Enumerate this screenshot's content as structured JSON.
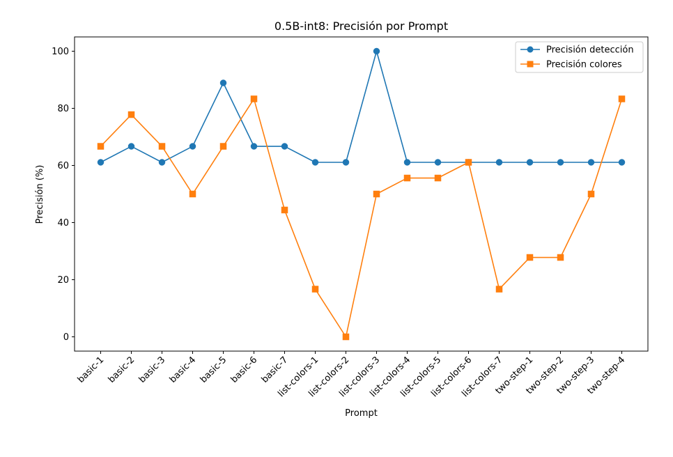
{
  "chart_data": {
    "type": "line",
    "title": "0.5B-int8: Precisión por Prompt",
    "xlabel": "Prompt",
    "ylabel": "Precisión (%)",
    "ylim": [
      -5,
      105
    ],
    "yticks": [
      0,
      20,
      40,
      60,
      80,
      100
    ],
    "grid": false,
    "legend_position": "top-right",
    "categories": [
      "basic-1",
      "basic-2",
      "basic-3",
      "basic-4",
      "basic-5",
      "basic-6",
      "basic-7",
      "list-colors-1",
      "list-colors-2",
      "list-colors-3",
      "list-colors-4",
      "list-colors-5",
      "list-colors-6",
      "list-colors-7",
      "two-step-1",
      "two-step-2",
      "two-step-3",
      "two-step-4"
    ],
    "series": [
      {
        "name": "Precisión detección",
        "color": "#1f77b4",
        "marker": "circle",
        "values": [
          61.1,
          66.7,
          61.1,
          66.7,
          88.9,
          66.7,
          66.7,
          61.1,
          61.1,
          100,
          61.1,
          61.1,
          61.1,
          61.1,
          61.1,
          61.1,
          61.1,
          61.1
        ]
      },
      {
        "name": "Precisión colores",
        "color": "#ff7f0e",
        "marker": "square",
        "values": [
          66.7,
          77.8,
          66.7,
          50,
          66.7,
          83.3,
          44.4,
          16.7,
          0,
          50,
          55.6,
          55.6,
          61.1,
          16.7,
          27.8,
          27.8,
          50,
          83.3
        ]
      }
    ]
  }
}
